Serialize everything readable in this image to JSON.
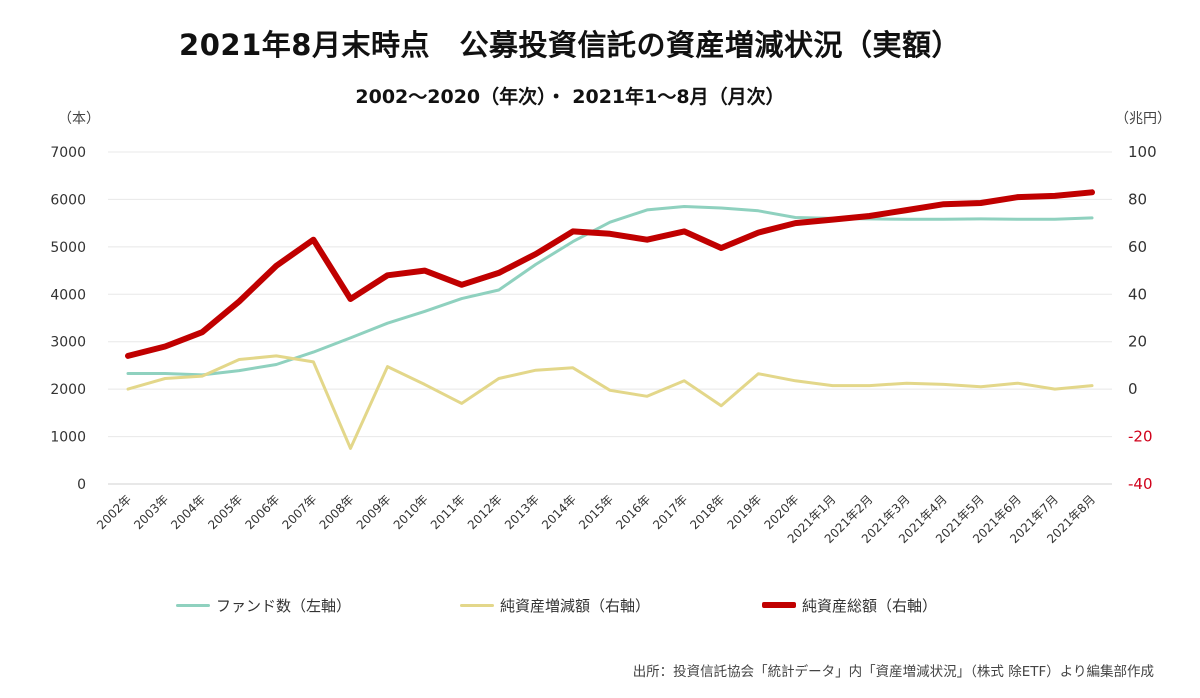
{
  "header": {
    "title": "2021年8月末時点　公募投資信託の資産増減状況（実額）",
    "subtitle": "2002〜2020（年次）・ 2021年1〜8月（月次）"
  },
  "axis_units": {
    "left": "（本）",
    "right": "（兆円）"
  },
  "source_note": "出所：投資信託協会「統計データ」内「資産増減状況」（株式 除ETF）より編集部作成",
  "chart_data": {
    "type": "line",
    "title": "2021年8月末時点　公募投資信託の資産増減状況（実額）",
    "subtitle": "2002〜2020（年次）・ 2021年1〜8月（月次）",
    "categories": [
      "2002年",
      "2003年",
      "2004年",
      "2005年",
      "2006年",
      "2007年",
      "2008年",
      "2009年",
      "2010年",
      "2011年",
      "2012年",
      "2013年",
      "2014年",
      "2015年",
      "2016年",
      "2017年",
      "2018年",
      "2019年",
      "2020年",
      "2021年1月",
      "2021年2月",
      "2021年3月",
      "2021年4月",
      "2021年5月",
      "2021年6月",
      "2021年7月",
      "2021年8月"
    ],
    "left_axis": {
      "label": "（本）",
      "ylim": [
        0,
        7000
      ],
      "ticks": [
        "0",
        "1000",
        "2000",
        "3000",
        "4000",
        "5000",
        "6000",
        "7000"
      ]
    },
    "right_axis": {
      "label": "（兆円）",
      "ylim": [
        -40,
        100
      ],
      "ticks": [
        "-40",
        "-20",
        "0",
        "20",
        "40",
        "60",
        "80",
        "100"
      ],
      "negative_color": "#d0021b"
    },
    "series": [
      {
        "name": "ファンド数（左軸）",
        "axis": "left",
        "color": "#8fd1bf",
        "line_width": 3,
        "values": [
          2330,
          2330,
          2300,
          2390,
          2520,
          2780,
          3080,
          3390,
          3640,
          3910,
          4090,
          4630,
          5110,
          5520,
          5780,
          5850,
          5820,
          5760,
          5620,
          5600,
          5590,
          5580,
          5580,
          5590,
          5580,
          5580,
          5610
        ]
      },
      {
        "name": "純資産増減額（右軸）",
        "axis": "right",
        "color": "#e3d78a",
        "line_width": 3,
        "values": [
          0,
          4.5,
          5.5,
          12.5,
          14,
          11.5,
          -25,
          9.5,
          2,
          -6,
          4.5,
          8,
          9,
          -0.5,
          -3,
          3.5,
          -7,
          6.5,
          3.5,
          1.5,
          1.5,
          2.5,
          2,
          1,
          2.5,
          0,
          1.5
        ]
      },
      {
        "name": "純資産総額（右軸）",
        "axis": "right",
        "color": "#c00000",
        "line_width": 6,
        "values": [
          14,
          18,
          24,
          37,
          52,
          63,
          38,
          48,
          50,
          44,
          49,
          57,
          66.5,
          65.5,
          63,
          66.5,
          59.5,
          66,
          70,
          71.5,
          73,
          75.5,
          78,
          78.5,
          81,
          81.5,
          83
        ]
      }
    ],
    "grid": true,
    "legend_position": "bottom"
  }
}
